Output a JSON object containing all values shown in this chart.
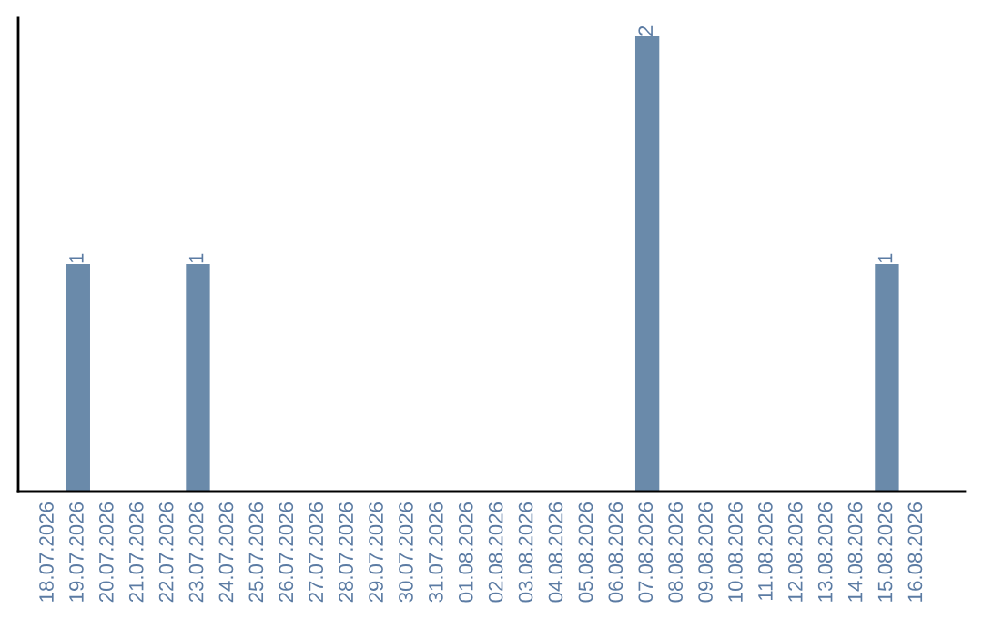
{
  "chart_data": {
    "type": "bar",
    "categories": [
      "18.07.2026",
      "19.07.2026",
      "20.07.2026",
      "21.07.2026",
      "22.07.2026",
      "23.07.2026",
      "24.07.2026",
      "25.07.2026",
      "26.07.2026",
      "27.07.2026",
      "28.07.2026",
      "29.07.2026",
      "30.07.2026",
      "31.07.2026",
      "01.08.2026",
      "02.08.2026",
      "03.08.2026",
      "04.08.2026",
      "05.08.2026",
      "06.08.2026",
      "07.08.2026",
      "08.08.2026",
      "09.08.2026",
      "10.08.2026",
      "11.08.2026",
      "12.08.2026",
      "13.08.2026",
      "14.08.2026",
      "15.08.2026",
      "16.08.2026"
    ],
    "values": [
      0,
      1,
      0,
      0,
      0,
      1,
      0,
      0,
      0,
      0,
      0,
      0,
      0,
      0,
      0,
      0,
      0,
      0,
      0,
      0,
      2,
      0,
      0,
      0,
      0,
      0,
      0,
      0,
      1,
      0
    ],
    "value_labels": [
      null,
      "1",
      null,
      null,
      null,
      "1",
      null,
      null,
      null,
      null,
      null,
      null,
      null,
      null,
      null,
      null,
      null,
      null,
      null,
      null,
      "2",
      null,
      null,
      null,
      null,
      null,
      null,
      null,
      "1",
      null
    ],
    "color": "#6a8aaa",
    "tick_labels": "x",
    "grid": false,
    "legend": false
  }
}
